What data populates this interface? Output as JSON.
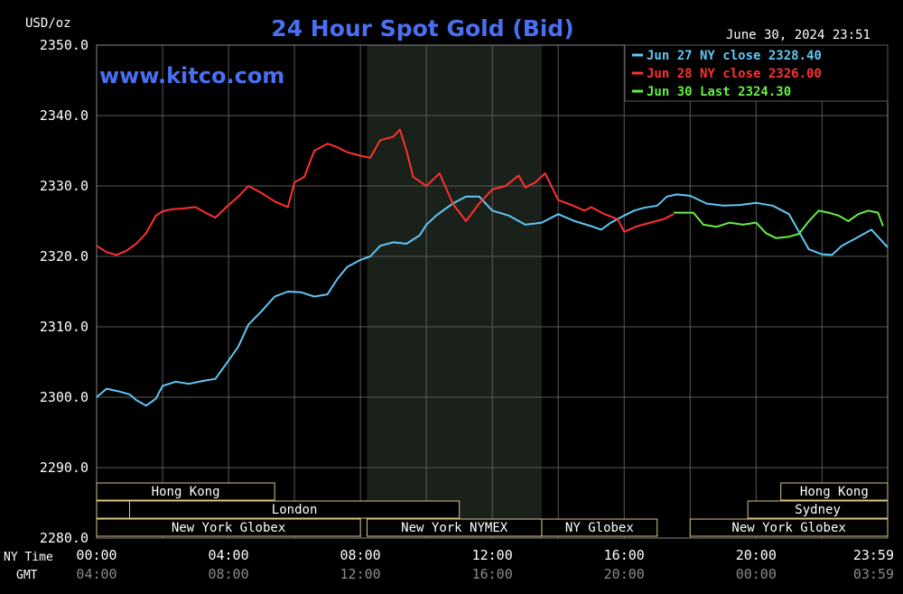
{
  "chart_data": {
    "type": "line",
    "title": "24 Hour Spot Gold (Bid)",
    "ylabel": "USD/oz",
    "watermark": "www.kitco.com",
    "timestamp": "June 30, 2024 23:51",
    "ylim": [
      2280,
      2350
    ],
    "y_ticks": [
      "2350.0",
      "2340.0",
      "2330.0",
      "2320.0",
      "2310.0",
      "2300.0",
      "2290.0",
      "2280.0"
    ],
    "x_row_labels": {
      "ny": "NY Time",
      "gmt": "GMT"
    },
    "x_ticks_ny": [
      "00:00",
      "04:00",
      "08:00",
      "12:00",
      "16:00",
      "20:00",
      "23:59"
    ],
    "x_ticks_gmt": [
      "04:00",
      "08:00",
      "12:00",
      "16:00",
      "20:00",
      "00:00",
      "03:59"
    ],
    "colors": {
      "jun27": "#5ec8f5",
      "jun28": "#ff3030",
      "jun30": "#66ee44",
      "grid": "#5a5a5a",
      "title": "#4a6ff0",
      "session_band": "#1a201a"
    },
    "legend": [
      {
        "label": "Jun 27 NY close 2328.40",
        "color": "#5ec8f5"
      },
      {
        "label": "Jun 28 NY close 2326.00",
        "color": "#ff3030"
      },
      {
        "label": "Jun 30 Last 2324.30",
        "color": "#66ee44"
      }
    ],
    "series": [
      {
        "name": "Jun 27 NY close 2328.40",
        "color": "#5ec8f5",
        "x": [
          0.0,
          0.3,
          0.7,
          1.0,
          1.2,
          1.5,
          1.8,
          2.0,
          2.4,
          2.8,
          3.2,
          3.6,
          4.0,
          4.3,
          4.6,
          5.0,
          5.4,
          5.8,
          6.2,
          6.6,
          7.0,
          7.3,
          7.6,
          8.0,
          8.3,
          8.6,
          9.0,
          9.4,
          9.8,
          10.0,
          10.3,
          10.5,
          10.8,
          11.2,
          11.6,
          12.0,
          12.5,
          13.0,
          13.5,
          14.0,
          14.5,
          15.0,
          15.3,
          15.6,
          16.0,
          16.3,
          16.6,
          17.0,
          17.3,
          17.6,
          18.0,
          18.5,
          19.0,
          19.5,
          20.0,
          20.5,
          21.0,
          21.3,
          21.6,
          22.0,
          22.3,
          22.6,
          23.0,
          23.5,
          23.99
        ],
        "y": [
          2300.0,
          2301.2,
          2300.8,
          2300.4,
          2299.6,
          2298.8,
          2299.8,
          2301.6,
          2302.2,
          2301.9,
          2302.3,
          2302.6,
          2305.2,
          2307.2,
          2310.3,
          2312.2,
          2314.3,
          2315.0,
          2314.9,
          2314.3,
          2314.6,
          2316.8,
          2318.5,
          2319.5,
          2320.0,
          2321.5,
          2322.0,
          2321.8,
          2323.0,
          2324.5,
          2325.8,
          2326.5,
          2327.5,
          2328.5,
          2328.5,
          2326.5,
          2325.8,
          2324.5,
          2324.8,
          2326.0,
          2325.0,
          2324.3,
          2323.8,
          2324.8,
          2325.8,
          2326.5,
          2326.9,
          2327.2,
          2328.5,
          2328.8,
          2328.6,
          2327.5,
          2327.2,
          2327.3,
          2327.6,
          2327.2,
          2326.0,
          2323.5,
          2321.0,
          2320.3,
          2320.2,
          2321.5,
          2322.5,
          2323.8,
          2321.3
        ]
      },
      {
        "name": "Jun 28 NY close 2326.00",
        "color": "#ff3030",
        "x": [
          0.0,
          0.3,
          0.6,
          0.9,
          1.2,
          1.5,
          1.8,
          2.0,
          2.3,
          2.6,
          3.0,
          3.3,
          3.6,
          4.0,
          4.3,
          4.6,
          5.0,
          5.4,
          5.8,
          6.0,
          6.3,
          6.6,
          7.0,
          7.3,
          7.6,
          8.0,
          8.3,
          8.6,
          9.0,
          9.2,
          9.4,
          9.6,
          10.0,
          10.4,
          10.8,
          11.2,
          11.6,
          12.0,
          12.4,
          12.8,
          13.0,
          13.3,
          13.6,
          14.0,
          14.4,
          14.8,
          15.0,
          15.4,
          15.8,
          16.0,
          16.4,
          16.8,
          17.2,
          17.5
        ],
        "y": [
          2321.5,
          2320.6,
          2320.2,
          2320.8,
          2321.8,
          2323.3,
          2325.8,
          2326.4,
          2326.7,
          2326.8,
          2327.0,
          2326.2,
          2325.5,
          2327.3,
          2328.5,
          2330.0,
          2329.0,
          2327.8,
          2327.0,
          2330.5,
          2331.3,
          2335.0,
          2336.0,
          2335.5,
          2334.8,
          2334.3,
          2334.0,
          2336.5,
          2337.0,
          2338.0,
          2335.0,
          2331.3,
          2330.0,
          2331.8,
          2327.5,
          2325.0,
          2327.5,
          2329.5,
          2330.0,
          2331.5,
          2329.8,
          2330.5,
          2331.8,
          2328.0,
          2327.3,
          2326.5,
          2327.0,
          2326.0,
          2325.3,
          2323.5,
          2324.3,
          2324.8,
          2325.3,
          2326.0
        ]
      },
      {
        "name": "Jun 30 Last 2324.30",
        "color": "#66ee44",
        "x": [
          17.5,
          17.8,
          18.1,
          18.4,
          18.8,
          19.2,
          19.6,
          20.0,
          20.3,
          20.6,
          21.0,
          21.3,
          21.6,
          21.9,
          22.2,
          22.5,
          22.8,
          23.1,
          23.4,
          23.7,
          23.85
        ],
        "y": [
          2326.2,
          2326.2,
          2326.2,
          2324.5,
          2324.2,
          2324.8,
          2324.5,
          2324.8,
          2323.3,
          2322.6,
          2322.8,
          2323.2,
          2325.0,
          2326.5,
          2326.2,
          2325.8,
          2325.0,
          2326.0,
          2326.5,
          2326.2,
          2324.3
        ]
      }
    ],
    "sessions": [
      {
        "label": "Hong Kong",
        "row": 0,
        "start": 0.0,
        "end": 5.4
      },
      {
        "label": "Hong Kong",
        "row": 0,
        "start": 20.75,
        "end": 23.99
      },
      {
        "label": "Sydney",
        "row": 1,
        "start": 19.75,
        "end": 23.99
      },
      {
        "label": "",
        "row": 1,
        "start": 0.0,
        "end": 1.0
      },
      {
        "label": "London",
        "row": 1,
        "start": 1.0,
        "end": 11.0
      },
      {
        "label": "New York Globex",
        "row": 2,
        "start": 0.0,
        "end": 8.0
      },
      {
        "label": "New York NYMEX",
        "row": 2,
        "start": 8.2,
        "end": 13.5
      },
      {
        "label": "NY Globex",
        "row": 2,
        "start": 13.5,
        "end": 17.0
      },
      {
        "label": "New York Globex",
        "row": 2,
        "start": 18.0,
        "end": 23.99
      }
    ],
    "highlight_band": {
      "start": 8.2,
      "end": 13.5
    }
  }
}
